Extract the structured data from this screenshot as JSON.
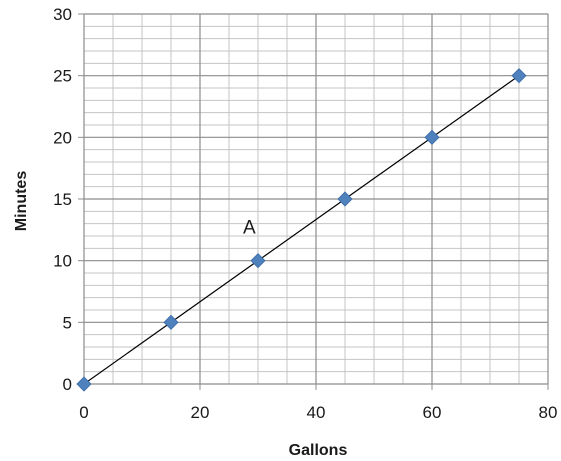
{
  "chart_data": {
    "type": "scatter",
    "xlabel": "Gallons",
    "ylabel": "Minutes",
    "xlim": [
      0,
      80
    ],
    "ylim": [
      0,
      30
    ],
    "xticks": [
      0,
      20,
      40,
      60,
      80
    ],
    "yticks": [
      0,
      5,
      10,
      15,
      20,
      25,
      30
    ],
    "minor_grid": {
      "x_step": 5,
      "y_step": 1
    },
    "grid": true,
    "legend": "none",
    "series": [
      {
        "points": [
          {
            "x": 0,
            "y": 0
          },
          {
            "x": 15,
            "y": 5
          },
          {
            "x": 30,
            "y": 10
          },
          {
            "x": 45,
            "y": 15
          },
          {
            "x": 60,
            "y": 20
          },
          {
            "x": 75,
            "y": 25
          }
        ],
        "marker": "diamond",
        "color": "#4f81bd"
      }
    ],
    "trendline": {
      "from": {
        "x": 0,
        "y": 0
      },
      "to": {
        "x": 75,
        "y": 25
      },
      "color": "#000000"
    },
    "annotations": [
      {
        "text": "A",
        "x": 28.5,
        "y": 12.2
      }
    ],
    "colors": {
      "major_grid": "#8c8c8c",
      "minor_grid": "#c4c4c4",
      "text": "#1a1a1a"
    }
  }
}
